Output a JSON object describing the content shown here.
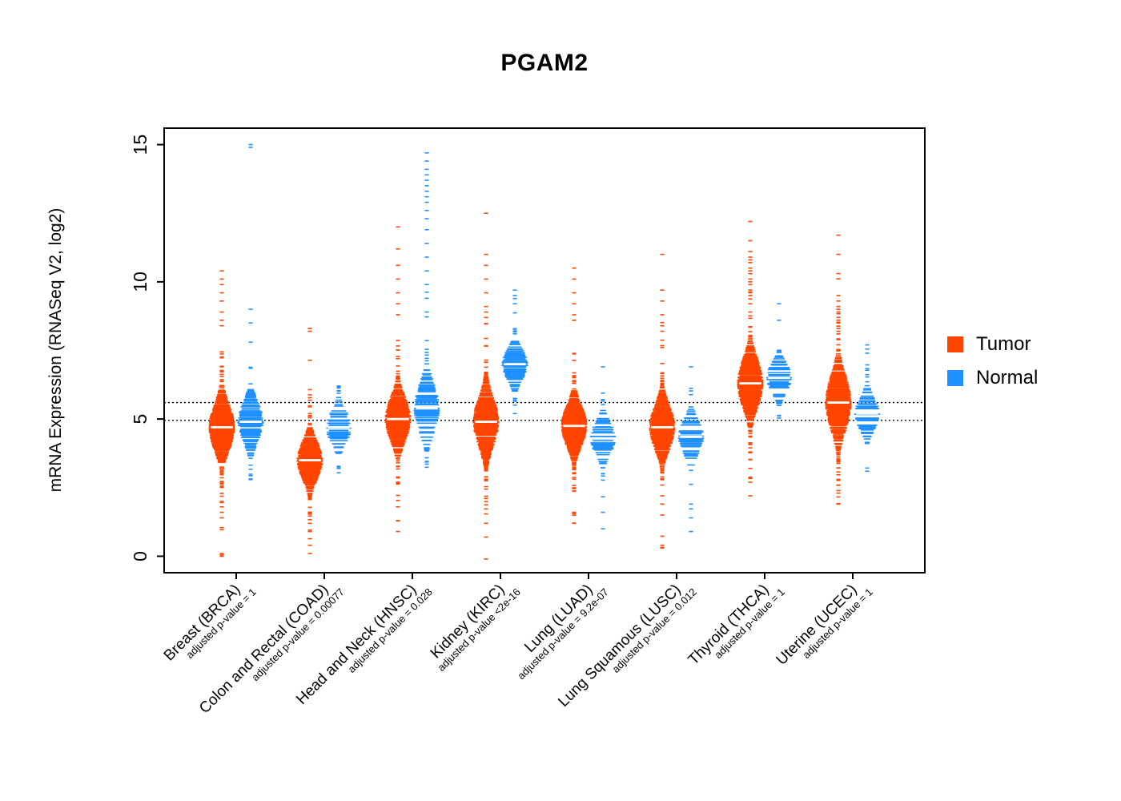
{
  "chart_data": {
    "type": "violin",
    "title": "PGAM2",
    "xlabel": "",
    "ylabel": "mRNA Expression (RNASeq V2, log2)",
    "yticks": [
      0,
      5,
      10,
      15
    ],
    "ylim": [
      -0.6,
      15.6
    ],
    "grid": false,
    "legend_position": "right",
    "reference_lines": [
      5.6,
      4.95
    ],
    "legend": [
      {
        "label": "Tumor",
        "color": "#FF4500"
      },
      {
        "label": "Normal",
        "color": "#1E90FF"
      }
    ],
    "groups": [
      {
        "label": "Breast (BRCA)",
        "pvalue": "adjusted p-value = 1",
        "tumor": {
          "median": 4.7,
          "sd": 0.85,
          "min": 0.0,
          "max": 10.4,
          "n": 300,
          "outliers": [
            0.0,
            0.05,
            0.1,
            1.4,
            1.6,
            1.8,
            2.0,
            8.6,
            8.9,
            9.3,
            9.6,
            9.9,
            10.1,
            10.4
          ]
        },
        "normal": {
          "median": 4.9,
          "sd": 0.75,
          "min": 2.6,
          "max": 15.0,
          "n": 110,
          "outliers": [
            8.5,
            9.0,
            7.8,
            14.9,
            15.0
          ]
        }
      },
      {
        "label": "Colon and Rectal (COAD)",
        "pvalue": "adjusted p-value = 0.00077",
        "tumor": {
          "median": 3.5,
          "sd": 0.7,
          "min": 0.1,
          "max": 8.3,
          "n": 280,
          "outliers": [
            0.1,
            0.4,
            0.9,
            1.2,
            8.2,
            8.3
          ]
        },
        "normal": {
          "median": 4.7,
          "sd": 0.6,
          "min": 2.9,
          "max": 6.2,
          "n": 60,
          "outliers": []
        }
      },
      {
        "label": "Head and Neck (HNSC)",
        "pvalue": "adjusted p-value = 0.028",
        "tumor": {
          "median": 5.0,
          "sd": 0.8,
          "min": 0.9,
          "max": 12.0,
          "n": 300,
          "outliers": [
            0.9,
            1.3,
            1.8,
            8.8,
            9.2,
            9.6,
            10.1,
            10.6,
            11.2,
            12.0
          ]
        },
        "normal": {
          "median": 5.4,
          "sd": 0.9,
          "min": 3.2,
          "max": 14.7,
          "n": 90,
          "outliers": [
            8.9,
            9.4,
            9.9,
            10.4,
            10.9,
            11.4,
            11.9,
            12.3,
            12.6,
            12.9,
            13.1,
            13.3,
            13.5,
            13.7,
            13.9,
            14.1,
            14.4,
            14.7
          ]
        }
      },
      {
        "label": "Kidney (KIRC)",
        "pvalue": "adjusted p-value <2e-16",
        "tumor": {
          "median": 4.9,
          "sd": 0.9,
          "min": -0.1,
          "max": 12.5,
          "n": 300,
          "outliers": [
            -0.1,
            0.7,
            1.2,
            8.7,
            9.1,
            9.6,
            10.1,
            10.6,
            11.0,
            12.5
          ]
        },
        "normal": {
          "median": 7.0,
          "sd": 0.6,
          "min": 5.2,
          "max": 9.7,
          "n": 95,
          "outliers": [
            9.2,
            9.5,
            9.7
          ]
        }
      },
      {
        "label": "Lung (LUAD)",
        "pvalue": "adjusted p-value = 9.2e-07",
        "tumor": {
          "median": 4.75,
          "sd": 0.75,
          "min": 1.2,
          "max": 10.5,
          "n": 300,
          "outliers": [
            1.2,
            1.6,
            8.6,
            8.8,
            9.2,
            9.6,
            10.1,
            10.5
          ]
        },
        "normal": {
          "median": 4.3,
          "sd": 0.6,
          "min": 1.0,
          "max": 7.0,
          "n": 60,
          "outliers": [
            1.0,
            1.6,
            6.9
          ]
        }
      },
      {
        "label": "Lung Squamous (LUSC)",
        "pvalue": "adjusted p-value = 0.012",
        "tumor": {
          "median": 4.7,
          "sd": 0.8,
          "min": 0.3,
          "max": 11.0,
          "n": 300,
          "outliers": [
            0.3,
            0.4,
            1.5,
            1.9,
            2.2,
            8.2,
            8.4,
            8.8,
            9.3,
            9.7,
            11.0
          ]
        },
        "normal": {
          "median": 4.35,
          "sd": 0.65,
          "min": 0.9,
          "max": 7.0,
          "n": 55,
          "outliers": [
            0.9,
            1.4,
            1.9,
            6.9
          ]
        }
      },
      {
        "label": "Thyroid (THCA)",
        "pvalue": "adjusted p-value = 1",
        "tumor": {
          "median": 6.3,
          "sd": 0.9,
          "min": 2.2,
          "max": 12.2,
          "n": 300,
          "outliers": [
            2.2,
            2.7,
            3.2,
            8.9,
            9.2,
            9.5,
            9.7,
            9.9,
            10.1,
            10.3,
            10.5,
            10.7,
            10.9,
            11.1,
            11.5,
            12.2,
            9.6,
            10.0,
            10.4,
            10.8
          ]
        },
        "normal": {
          "median": 6.5,
          "sd": 0.55,
          "min": 4.9,
          "max": 9.2,
          "n": 60,
          "outliers": [
            8.6,
            9.2
          ]
        }
      },
      {
        "label": "Uterine (UCEC)",
        "pvalue": "adjusted p-value = 1",
        "tumor": {
          "median": 5.6,
          "sd": 1.0,
          "min": 1.9,
          "max": 11.7,
          "n": 300,
          "outliers": [
            1.9,
            2.3,
            7.9,
            8.1,
            8.3,
            8.5,
            8.7,
            8.9,
            9.1,
            9.3,
            9.5,
            8.2,
            8.6,
            9.0,
            10.3,
            11.0,
            11.7
          ]
        },
        "normal": {
          "median": 5.2,
          "sd": 0.6,
          "min": 3.1,
          "max": 7.7,
          "n": 55,
          "outliers": [
            3.1,
            7.4,
            7.7
          ]
        }
      }
    ]
  }
}
